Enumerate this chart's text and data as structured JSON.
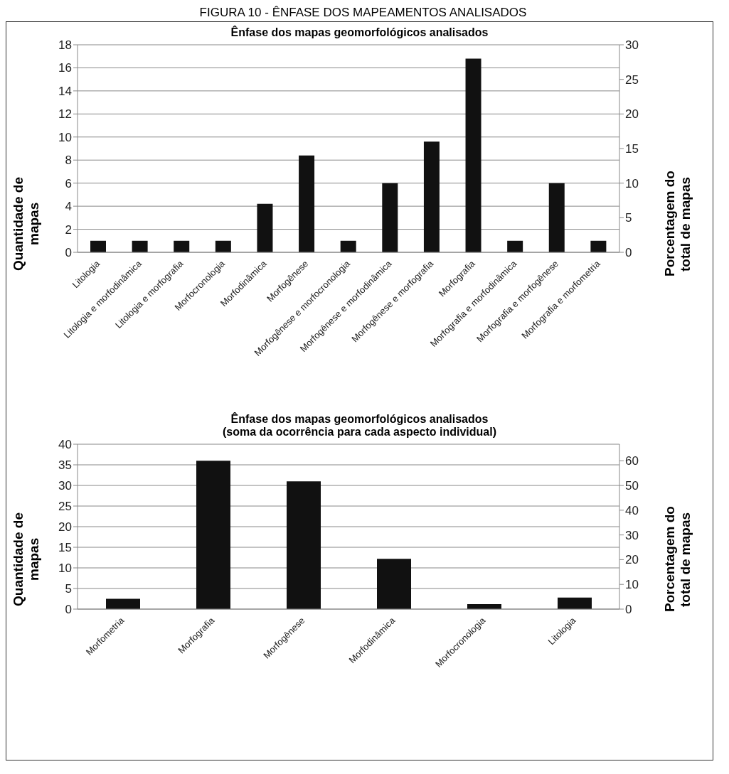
{
  "chart_data": [
    {
      "type": "bar",
      "title": "Ênfase dos mapas geomorfológicos analisados",
      "annotations": [
        "FIGURA 10 - ÊNFASE DOS MAPEAMENTOS ANALISADOS"
      ],
      "ylabel": "Quantidade de mapas",
      "y2label": "Porcentagem do total de mapas",
      "categories": [
        "Litologia",
        "Litologia e morfodinâmica",
        "Litologia e morfografia",
        "Morfocronologia",
        "Morfodinâmica",
        "Morfogênese",
        "Morfogênese e morfocronologia",
        "Morfogênese e morfodinâmica",
        "Morfogênese e morfografia",
        "Morfografia",
        "Morfografia e morfodinâmica",
        "Morfografia e morfogênese",
        "Morfografia e morfometria"
      ],
      "values": [
        1,
        1,
        1,
        1,
        4.2,
        8.4,
        1,
        6,
        9.6,
        16.8,
        1,
        6,
        1
      ],
      "color": "#111111",
      "ylim": [
        0,
        18
      ],
      "yticks": [
        0,
        2,
        4,
        6,
        8,
        10,
        12,
        14,
        16,
        18
      ],
      "y2lim": [
        0,
        30
      ],
      "y2ticks": [
        0,
        5,
        10,
        15,
        20,
        25,
        30
      ],
      "grid": "y",
      "legend": false
    },
    {
      "type": "bar",
      "title": "Ênfase dos mapas geomorfológicos analisados",
      "subtitle": "(soma da ocorrência para cada aspecto individual)",
      "ylabel": "Quantidade de mapas",
      "y2label": "Porcentagem do total de mapas",
      "categories": [
        "Morfometria",
        "Morfografia",
        "Morfogênese",
        "Morfodinâmica",
        "Morfocronologia",
        "Litologia"
      ],
      "values": [
        2.5,
        36,
        31,
        12.2,
        1.2,
        2.8
      ],
      "color": "#111111",
      "ylim": [
        0,
        40
      ],
      "yticks": [
        0,
        5,
        10,
        15,
        20,
        25,
        30,
        35,
        40
      ],
      "y2lim": [
        0,
        66.7
      ],
      "y2ticks": [
        0,
        10,
        20,
        30,
        40,
        50,
        60
      ],
      "grid": "y",
      "legend": false
    }
  ]
}
